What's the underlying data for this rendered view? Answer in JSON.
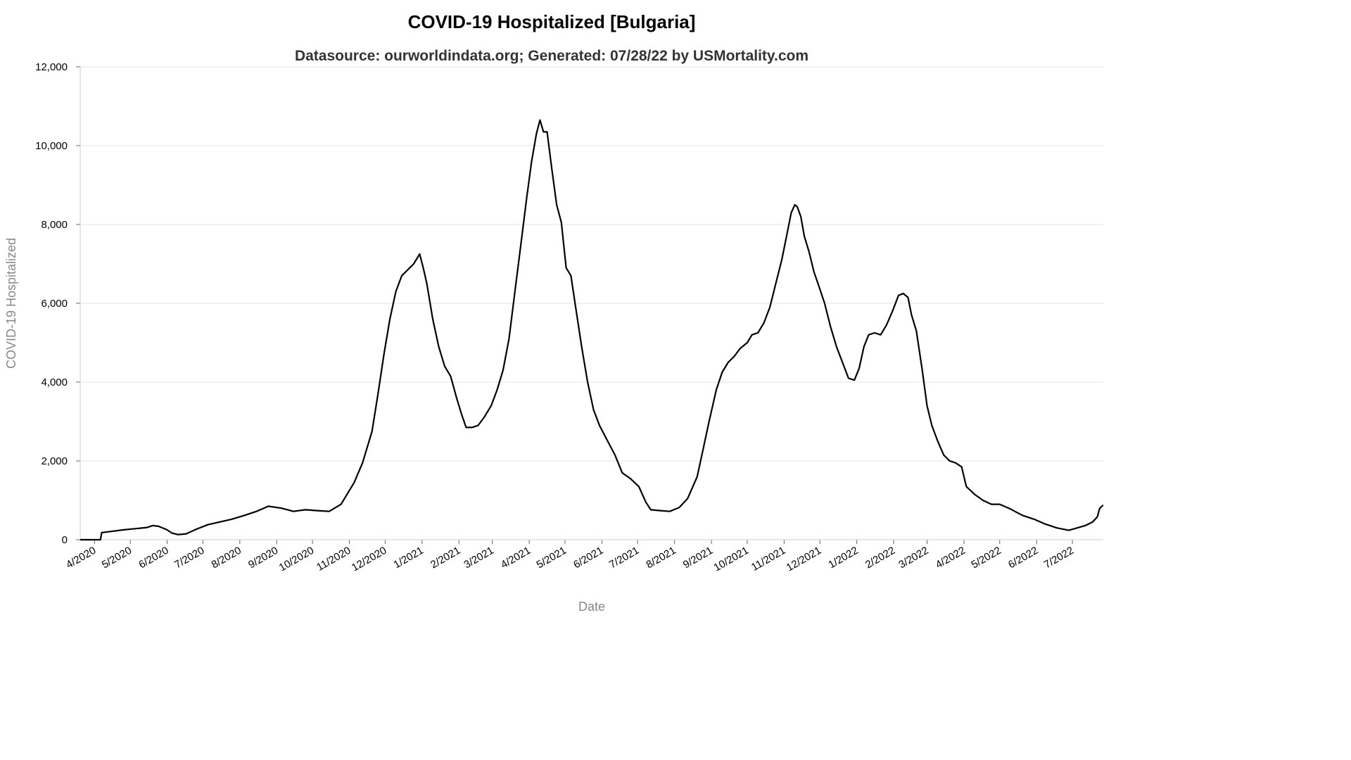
{
  "chart_data": {
    "type": "line",
    "title": "COVID-19 Hospitalized [Bulgaria]",
    "subtitle": "Datasource: ourworldindata.org; Generated: 07/28/22 by USMortality.com",
    "xlabel": "Date",
    "ylabel": "COVID-19 Hospitalized",
    "ylim": [
      0,
      12000
    ],
    "yticks": [
      0,
      2000,
      4000,
      6000,
      8000,
      10000,
      12000
    ],
    "ytick_labels": [
      "0",
      "2,000",
      "4,000",
      "6,000",
      "8,000",
      "10,000",
      "12,000"
    ],
    "xlim": [
      "2020-03-20",
      "2022-07-27"
    ],
    "xticks": [
      "2020-04-01",
      "2020-05-01",
      "2020-06-01",
      "2020-07-01",
      "2020-08-01",
      "2020-09-01",
      "2020-10-01",
      "2020-11-01",
      "2020-12-01",
      "2021-01-01",
      "2021-02-01",
      "2021-03-01",
      "2021-04-01",
      "2021-05-01",
      "2021-06-01",
      "2021-07-01",
      "2021-08-01",
      "2021-09-01",
      "2021-10-01",
      "2021-11-01",
      "2021-12-01",
      "2022-01-01",
      "2022-02-01",
      "2022-03-01",
      "2022-04-01",
      "2022-05-01",
      "2022-06-01",
      "2022-07-01"
    ],
    "xtick_labels": [
      "4/2020",
      "5/2020",
      "6/2020",
      "7/2020",
      "8/2020",
      "9/2020",
      "10/2020",
      "11/2020",
      "12/2020",
      "1/2021",
      "2/2021",
      "3/2021",
      "4/2021",
      "5/2021",
      "6/2021",
      "7/2021",
      "8/2021",
      "9/2021",
      "10/2021",
      "11/2021",
      "12/2021",
      "1/2022",
      "2/2022",
      "3/2022",
      "4/2022",
      "5/2022",
      "6/2022",
      "7/2022"
    ],
    "grid": true,
    "series": [
      {
        "color": "#000000",
        "points": [
          [
            "2020-03-20",
            0
          ],
          [
            "2020-04-05",
            0
          ],
          [
            "2020-04-06",
            0
          ],
          [
            "2020-04-07",
            180
          ],
          [
            "2020-04-15",
            210
          ],
          [
            "2020-04-25",
            250
          ],
          [
            "2020-05-05",
            280
          ],
          [
            "2020-05-15",
            310
          ],
          [
            "2020-05-20",
            360
          ],
          [
            "2020-05-25",
            340
          ],
          [
            "2020-06-01",
            250
          ],
          [
            "2020-06-05",
            170
          ],
          [
            "2020-06-10",
            130
          ],
          [
            "2020-06-17",
            150
          ],
          [
            "2020-06-25",
            260
          ],
          [
            "2020-07-05",
            380
          ],
          [
            "2020-07-15",
            450
          ],
          [
            "2020-07-25",
            520
          ],
          [
            "2020-08-05",
            620
          ],
          [
            "2020-08-15",
            720
          ],
          [
            "2020-08-25",
            850
          ],
          [
            "2020-09-05",
            800
          ],
          [
            "2020-09-15",
            720
          ],
          [
            "2020-09-25",
            760
          ],
          [
            "2020-10-05",
            740
          ],
          [
            "2020-10-15",
            720
          ],
          [
            "2020-10-25",
            900
          ],
          [
            "2020-11-05",
            1450
          ],
          [
            "2020-11-12",
            1950
          ],
          [
            "2020-11-20",
            2750
          ],
          [
            "2020-11-25",
            3700
          ],
          [
            "2020-11-30",
            4700
          ],
          [
            "2020-12-05",
            5600
          ],
          [
            "2020-12-10",
            6300
          ],
          [
            "2020-12-15",
            6700
          ],
          [
            "2020-12-20",
            6850
          ],
          [
            "2020-12-25",
            7000
          ],
          [
            "2020-12-30",
            7250
          ],
          [
            "2021-01-02",
            6900
          ],
          [
            "2021-01-05",
            6500
          ],
          [
            "2021-01-10",
            5600
          ],
          [
            "2021-01-15",
            4900
          ],
          [
            "2021-01-20",
            4400
          ],
          [
            "2021-01-25",
            4150
          ],
          [
            "2021-01-30",
            3600
          ],
          [
            "2021-02-03",
            3200
          ],
          [
            "2021-02-07",
            2850
          ],
          [
            "2021-02-12",
            2850
          ],
          [
            "2021-02-17",
            2900
          ],
          [
            "2021-02-22",
            3100
          ],
          [
            "2021-02-28",
            3400
          ],
          [
            "2021-03-05",
            3800
          ],
          [
            "2021-03-10",
            4300
          ],
          [
            "2021-03-15",
            5100
          ],
          [
            "2021-03-20",
            6300
          ],
          [
            "2021-03-25",
            7500
          ],
          [
            "2021-03-30",
            8700
          ],
          [
            "2021-04-03",
            9600
          ],
          [
            "2021-04-07",
            10300
          ],
          [
            "2021-04-10",
            10650
          ],
          [
            "2021-04-13",
            10350
          ],
          [
            "2021-04-16",
            10350
          ],
          [
            "2021-04-20",
            9400
          ],
          [
            "2021-04-24",
            8500
          ],
          [
            "2021-04-28",
            8050
          ],
          [
            "2021-05-02",
            6900
          ],
          [
            "2021-05-06",
            6700
          ],
          [
            "2021-05-10",
            5900
          ],
          [
            "2021-05-15",
            4900
          ],
          [
            "2021-05-20",
            4000
          ],
          [
            "2021-05-25",
            3300
          ],
          [
            "2021-05-30",
            2900
          ],
          [
            "2021-06-05",
            2550
          ],
          [
            "2021-06-12",
            2150
          ],
          [
            "2021-06-18",
            1700
          ],
          [
            "2021-06-25",
            1550
          ],
          [
            "2021-07-02",
            1350
          ],
          [
            "2021-07-08",
            950
          ],
          [
            "2021-07-12",
            760
          ],
          [
            "2021-07-20",
            740
          ],
          [
            "2021-07-28",
            720
          ],
          [
            "2021-08-05",
            820
          ],
          [
            "2021-08-12",
            1050
          ],
          [
            "2021-08-20",
            1600
          ],
          [
            "2021-08-25",
            2300
          ],
          [
            "2021-08-30",
            3000
          ],
          [
            "2021-09-05",
            3800
          ],
          [
            "2021-09-10",
            4250
          ],
          [
            "2021-09-15",
            4500
          ],
          [
            "2021-09-20",
            4650
          ],
          [
            "2021-09-25",
            4850
          ],
          [
            "2021-10-01",
            5000
          ],
          [
            "2021-10-05",
            5200
          ],
          [
            "2021-10-10",
            5250
          ],
          [
            "2021-10-15",
            5500
          ],
          [
            "2021-10-20",
            5900
          ],
          [
            "2021-10-25",
            6500
          ],
          [
            "2021-10-30",
            7100
          ],
          [
            "2021-11-03",
            7700
          ],
          [
            "2021-11-07",
            8300
          ],
          [
            "2021-11-10",
            8500
          ],
          [
            "2021-11-12",
            8450
          ],
          [
            "2021-11-15",
            8200
          ],
          [
            "2021-11-18",
            7700
          ],
          [
            "2021-11-22",
            7300
          ],
          [
            "2021-11-26",
            6800
          ],
          [
            "2021-11-30",
            6450
          ],
          [
            "2021-12-05",
            6000
          ],
          [
            "2021-12-10",
            5400
          ],
          [
            "2021-12-15",
            4900
          ],
          [
            "2021-12-20",
            4500
          ],
          [
            "2021-12-25",
            4100
          ],
          [
            "2021-12-30",
            4050
          ],
          [
            "2022-01-03",
            4350
          ],
          [
            "2022-01-07",
            4900
          ],
          [
            "2022-01-11",
            5200
          ],
          [
            "2022-01-16",
            5250
          ],
          [
            "2022-01-21",
            5200
          ],
          [
            "2022-01-26",
            5450
          ],
          [
            "2022-01-31",
            5800
          ],
          [
            "2022-02-05",
            6200
          ],
          [
            "2022-02-09",
            6250
          ],
          [
            "2022-02-13",
            6150
          ],
          [
            "2022-02-16",
            5700
          ],
          [
            "2022-02-20",
            5300
          ],
          [
            "2022-02-25",
            4300
          ],
          [
            "2022-03-01",
            3400
          ],
          [
            "2022-03-05",
            2900
          ],
          [
            "2022-03-10",
            2500
          ],
          [
            "2022-03-15",
            2150
          ],
          [
            "2022-03-20",
            2000
          ],
          [
            "2022-03-25",
            1950
          ],
          [
            "2022-03-30",
            1850
          ],
          [
            "2022-04-03",
            1350
          ],
          [
            "2022-04-10",
            1150
          ],
          [
            "2022-04-17",
            1000
          ],
          [
            "2022-04-24",
            900
          ],
          [
            "2022-05-01",
            900
          ],
          [
            "2022-05-10",
            780
          ],
          [
            "2022-05-20",
            620
          ],
          [
            "2022-05-30",
            520
          ],
          [
            "2022-06-08",
            400
          ],
          [
            "2022-06-18",
            300
          ],
          [
            "2022-06-28",
            240
          ],
          [
            "2022-07-05",
            300
          ],
          [
            "2022-07-12",
            360
          ],
          [
            "2022-07-18",
            450
          ],
          [
            "2022-07-22",
            580
          ],
          [
            "2022-07-24",
            800
          ],
          [
            "2022-07-27",
            880
          ]
        ]
      }
    ]
  }
}
